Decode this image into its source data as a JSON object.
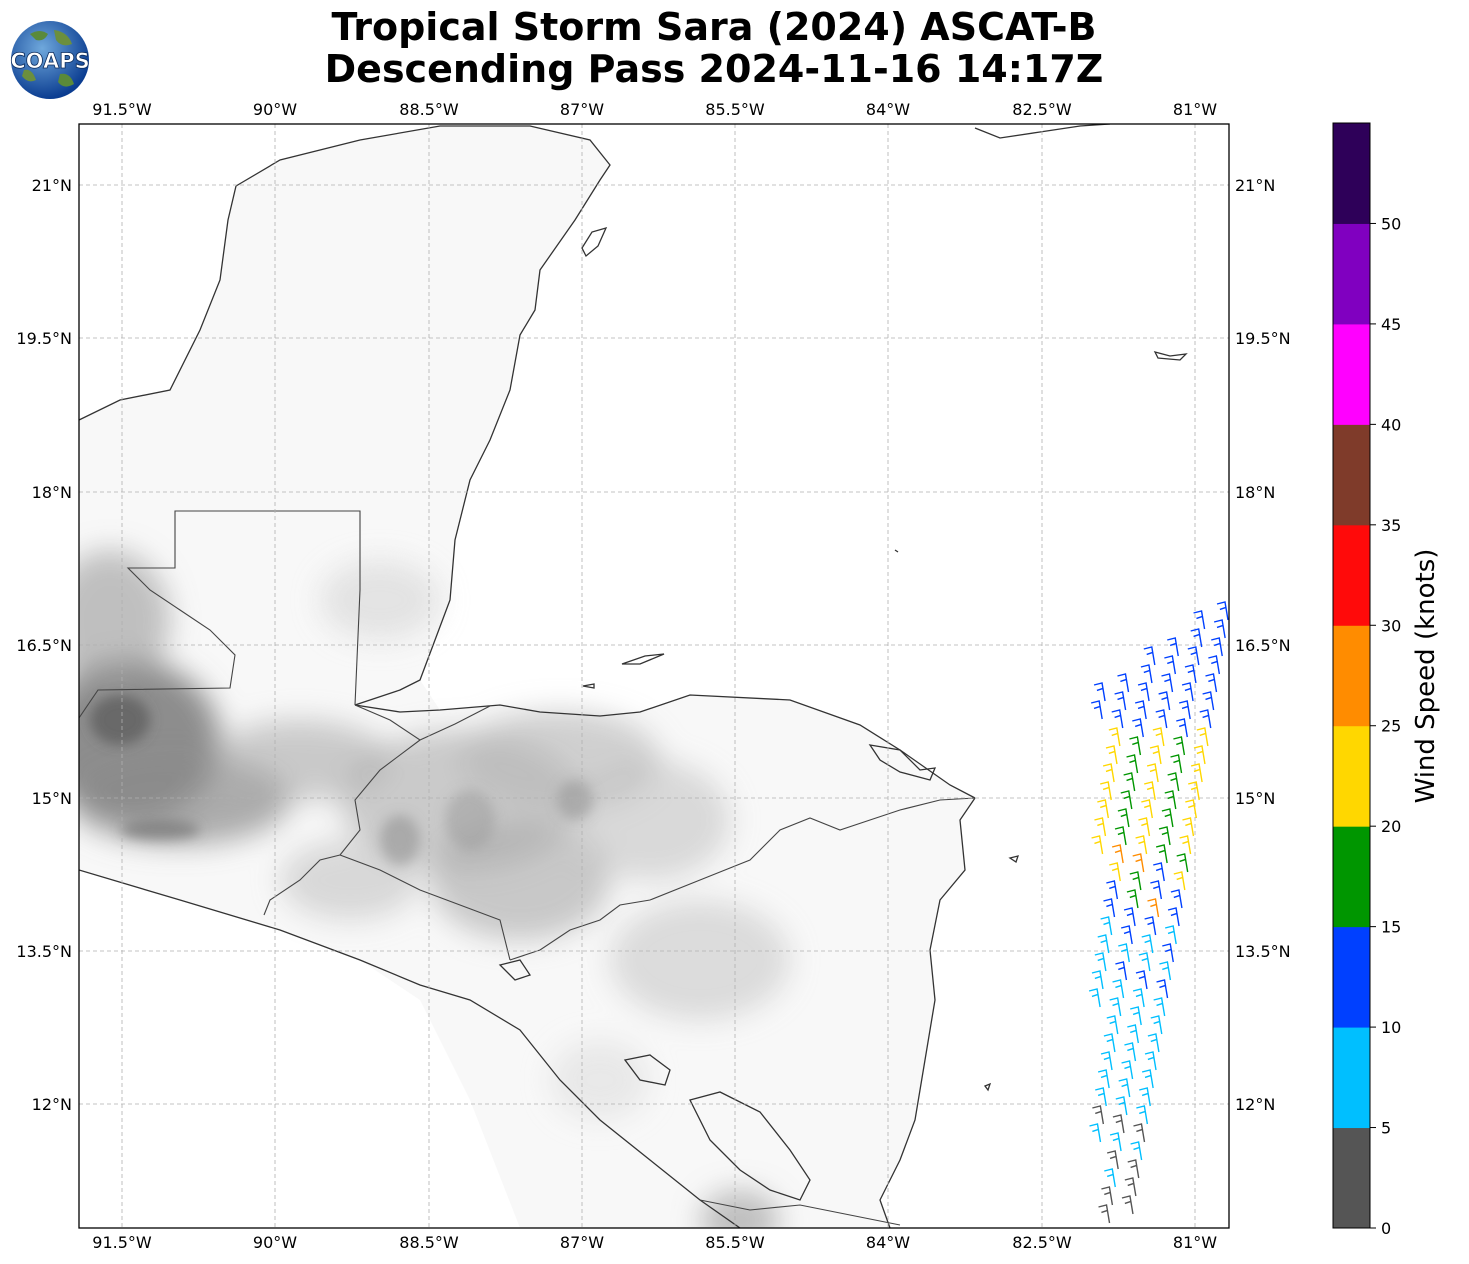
{
  "title": {
    "line1": "Tropical Storm Sara (2024) ASCAT-B",
    "line2": "Descending Pass 2024-11-16 14:17Z"
  },
  "logo": {
    "text": "COAPS",
    "icon": "globe-logo-icon"
  },
  "map": {
    "projection": "PlateCarree",
    "lon_range": [
      -91.9,
      -80.6
    ],
    "lat_range": [
      10.8,
      21.6
    ],
    "lon_ticks": [
      "91.5°W",
      "90°W",
      "88.5°W",
      "87°W",
      "85.5°W",
      "84°W",
      "82.5°W",
      "81°W"
    ],
    "lat_ticks": [
      "21°N",
      "19.5°N",
      "18°N",
      "16.5°N",
      "15°N",
      "13.5°N",
      "12°N"
    ],
    "gridlines": true,
    "background": "grayscale terrain elevation over land, white ocean"
  },
  "colorbar": {
    "label": "Wind Speed (knots)",
    "ticks": [
      "0",
      "5",
      "10",
      "15",
      "20",
      "25",
      "30",
      "35",
      "40",
      "45",
      "50"
    ],
    "colors": [
      "#555555",
      "#00bfff",
      "#0040ff",
      "#009600",
      "#ffd700",
      "#ff8c00",
      "#ff0a0a",
      "#7f3b2a",
      "#ff00ff",
      "#8000c0",
      "#2e0059"
    ]
  },
  "wind_barbs": {
    "description": "ASCAT-B descending swath wind barbs along the eastern edge (~80.6–82.0°W, 11–17°N)",
    "speed_range_knots": [
      0,
      30
    ]
  }
}
